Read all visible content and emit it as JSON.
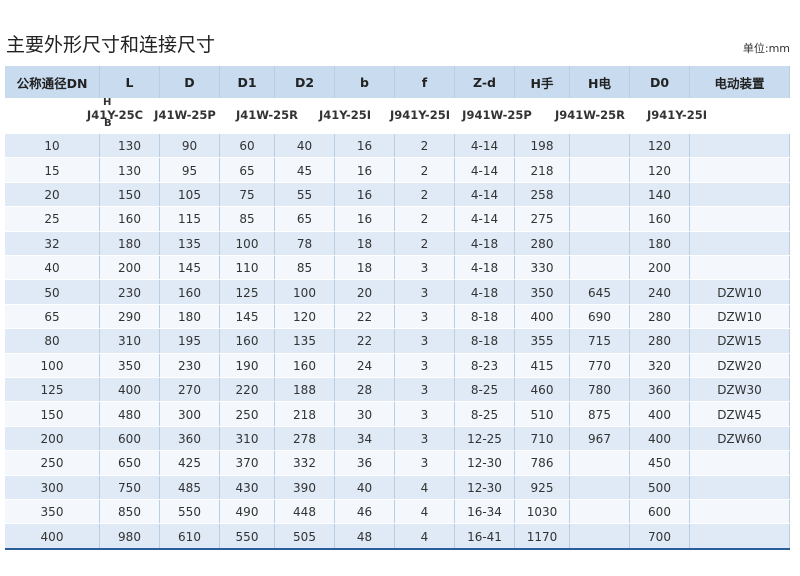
{
  "header": {
    "title": "主要外形尺寸和连接尺寸",
    "unit": "单位:mm"
  },
  "table": {
    "columns": [
      "公称通径DN",
      "L",
      "D",
      "D1",
      "D2",
      "b",
      "f",
      "Z-d",
      "H手",
      "H电",
      "D0",
      "电动装置"
    ],
    "models": [
      "J41Y-25C",
      "J41W-25P",
      "J41W-25R",
      "J41Y-25I",
      "J941Y-25I",
      "J941W-25P",
      "J941W-25R",
      "J941Y-25I"
    ],
    "model_variants": [
      "H",
      "B"
    ],
    "rows": [
      [
        10,
        130,
        90,
        60,
        40,
        16,
        2,
        "4-14",
        198,
        null,
        120,
        null
      ],
      [
        15,
        130,
        95,
        65,
        45,
        16,
        2,
        "4-14",
        218,
        null,
        120,
        null
      ],
      [
        20,
        150,
        105,
        75,
        55,
        16,
        2,
        "4-14",
        258,
        null,
        140,
        null
      ],
      [
        25,
        160,
        115,
        85,
        65,
        16,
        2,
        "4-14",
        275,
        null,
        160,
        null
      ],
      [
        32,
        180,
        135,
        100,
        78,
        18,
        2,
        "4-18",
        280,
        null,
        180,
        null
      ],
      [
        40,
        200,
        145,
        110,
        85,
        18,
        3,
        "4-18",
        330,
        null,
        200,
        null
      ],
      [
        50,
        230,
        160,
        125,
        100,
        20,
        3,
        "4-18",
        350,
        645,
        240,
        "DZW10"
      ],
      [
        65,
        290,
        180,
        145,
        120,
        22,
        3,
        "8-18",
        400,
        690,
        280,
        "DZW10"
      ],
      [
        80,
        310,
        195,
        160,
        135,
        22,
        3,
        "8-18",
        355,
        715,
        280,
        "DZW15"
      ],
      [
        100,
        350,
        230,
        190,
        160,
        24,
        3,
        "8-23",
        415,
        770,
        320,
        "DZW20"
      ],
      [
        125,
        400,
        270,
        220,
        188,
        28,
        3,
        "8-25",
        460,
        780,
        360,
        "DZW30"
      ],
      [
        150,
        480,
        300,
        250,
        218,
        30,
        3,
        "8-25",
        510,
        875,
        400,
        "DZW45"
      ],
      [
        200,
        600,
        360,
        310,
        278,
        34,
        3,
        "12-25",
        710,
        967,
        400,
        "DZW60"
      ],
      [
        250,
        650,
        425,
        370,
        332,
        36,
        3,
        "12-30",
        786,
        null,
        450,
        null
      ],
      [
        300,
        750,
        485,
        430,
        390,
        40,
        4,
        "12-30",
        925,
        null,
        500,
        null
      ],
      [
        350,
        850,
        550,
        490,
        448,
        46,
        4,
        "16-34",
        1030,
        null,
        600,
        null
      ],
      [
        400,
        980,
        610,
        550,
        505,
        48,
        4,
        "16-41",
        1170,
        null,
        700,
        null
      ]
    ]
  }
}
